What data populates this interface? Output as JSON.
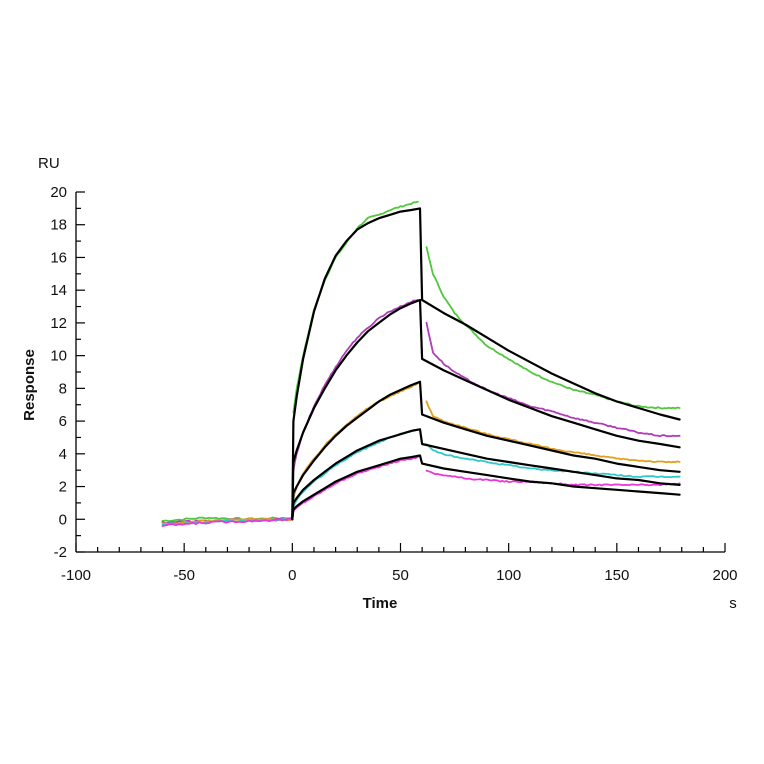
{
  "chart_data": {
    "type": "line",
    "y_unit": "RU",
    "x_unit": "s",
    "xlabel": "Time",
    "ylabel": "Response",
    "xlim": [
      -100,
      200
    ],
    "ylim": [
      -2,
      20
    ],
    "x_ticks": [
      -100,
      -50,
      0,
      50,
      100,
      150,
      200
    ],
    "y_ticks": [
      -2,
      0,
      2,
      4,
      6,
      8,
      10,
      12,
      14,
      16,
      18,
      20
    ],
    "legend": "none",
    "grid": false,
    "injection_start": 0,
    "injection_end": 60,
    "series": [
      {
        "color": "#4fc83c",
        "baseline": [
          [
            -60,
            -0.1
          ],
          [
            -40,
            0.1
          ],
          [
            -20,
            0.0
          ],
          [
            0,
            0.1
          ]
        ],
        "association": [
          [
            0.5,
            6.5
          ],
          [
            2,
            8.0
          ],
          [
            5,
            10.0
          ],
          [
            10,
            12.8
          ],
          [
            15,
            14.6
          ],
          [
            20,
            16.0
          ],
          [
            25,
            16.9
          ],
          [
            30,
            17.8
          ],
          [
            35,
            18.4
          ],
          [
            40,
            18.6
          ],
          [
            45,
            18.9
          ],
          [
            50,
            19.1
          ],
          [
            55,
            19.3
          ],
          [
            58,
            19.4
          ]
        ],
        "dissociation": [
          [
            62,
            16.6
          ],
          [
            65,
            15.0
          ],
          [
            70,
            13.6
          ],
          [
            75,
            12.6
          ],
          [
            80,
            11.9
          ],
          [
            90,
            10.6
          ],
          [
            100,
            9.8
          ],
          [
            110,
            9.0
          ],
          [
            120,
            8.4
          ],
          [
            130,
            7.9
          ],
          [
            140,
            7.6
          ],
          [
            150,
            7.2
          ],
          [
            160,
            6.9
          ],
          [
            170,
            6.8
          ],
          [
            179,
            6.8
          ]
        ]
      },
      {
        "color": "#b03cb8",
        "baseline": [
          [
            -60,
            -0.2
          ],
          [
            -40,
            -0.1
          ],
          [
            -20,
            0.0
          ],
          [
            0,
            0.0
          ]
        ],
        "association": [
          [
            0.5,
            3.0
          ],
          [
            2,
            4.0
          ],
          [
            5,
            5.3
          ],
          [
            10,
            6.9
          ],
          [
            15,
            8.2
          ],
          [
            20,
            9.3
          ],
          [
            25,
            10.3
          ],
          [
            30,
            11.1
          ],
          [
            35,
            11.7
          ],
          [
            40,
            12.3
          ],
          [
            45,
            12.7
          ],
          [
            50,
            13.0
          ],
          [
            55,
            13.3
          ],
          [
            58,
            13.4
          ]
        ],
        "dissociation": [
          [
            62,
            12.0
          ],
          [
            65,
            10.2
          ],
          [
            70,
            9.5
          ],
          [
            75,
            9.0
          ],
          [
            80,
            8.6
          ],
          [
            90,
            7.9
          ],
          [
            100,
            7.4
          ],
          [
            110,
            6.9
          ],
          [
            120,
            6.6
          ],
          [
            130,
            6.2
          ],
          [
            140,
            5.9
          ],
          [
            150,
            5.6
          ],
          [
            160,
            5.3
          ],
          [
            170,
            5.1
          ],
          [
            179,
            5.1
          ]
        ]
      },
      {
        "color": "#e0a020",
        "baseline": [
          [
            -60,
            -0.3
          ],
          [
            -40,
            -0.1
          ],
          [
            -20,
            0.0
          ],
          [
            0,
            0.0
          ]
        ],
        "association": [
          [
            0.5,
            1.3
          ],
          [
            2,
            2.0
          ],
          [
            5,
            2.8
          ],
          [
            10,
            3.7
          ],
          [
            15,
            4.5
          ],
          [
            20,
            5.2
          ],
          [
            25,
            5.8
          ],
          [
            30,
            6.3
          ],
          [
            35,
            6.8
          ],
          [
            40,
            7.2
          ],
          [
            45,
            7.5
          ],
          [
            50,
            7.8
          ],
          [
            55,
            8.1
          ],
          [
            58,
            8.3
          ]
        ],
        "dissociation": [
          [
            62,
            7.2
          ],
          [
            65,
            6.3
          ],
          [
            70,
            6.0
          ],
          [
            75,
            5.8
          ],
          [
            80,
            5.6
          ],
          [
            90,
            5.2
          ],
          [
            100,
            4.9
          ],
          [
            110,
            4.6
          ],
          [
            120,
            4.3
          ],
          [
            130,
            4.1
          ],
          [
            140,
            3.9
          ],
          [
            150,
            3.7
          ],
          [
            160,
            3.6
          ],
          [
            170,
            3.5
          ],
          [
            179,
            3.5
          ]
        ]
      },
      {
        "color": "#30c8c8",
        "baseline": [
          [
            -60,
            -0.3
          ],
          [
            -40,
            -0.2
          ],
          [
            -20,
            -0.1
          ],
          [
            0,
            0.0
          ]
        ],
        "association": [
          [
            0.5,
            0.8
          ],
          [
            2,
            1.2
          ],
          [
            5,
            1.7
          ],
          [
            10,
            2.3
          ],
          [
            15,
            2.8
          ],
          [
            20,
            3.3
          ],
          [
            25,
            3.7
          ],
          [
            30,
            4.1
          ],
          [
            35,
            4.4
          ],
          [
            40,
            4.7
          ],
          [
            45,
            5.0
          ],
          [
            50,
            5.2
          ],
          [
            55,
            5.4
          ],
          [
            58,
            5.5
          ]
        ],
        "dissociation": [
          [
            62,
            4.6
          ],
          [
            65,
            4.2
          ],
          [
            70,
            4.0
          ],
          [
            75,
            3.8
          ],
          [
            80,
            3.7
          ],
          [
            90,
            3.5
          ],
          [
            100,
            3.3
          ],
          [
            110,
            3.1
          ],
          [
            120,
            3.0
          ],
          [
            130,
            2.9
          ],
          [
            140,
            2.8
          ],
          [
            150,
            2.7
          ],
          [
            160,
            2.6
          ],
          [
            170,
            2.6
          ],
          [
            179,
            2.6
          ]
        ]
      },
      {
        "color": "#e838d8",
        "baseline": [
          [
            -60,
            -0.4
          ],
          [
            -40,
            -0.2
          ],
          [
            -20,
            -0.1
          ],
          [
            0,
            0.0
          ]
        ],
        "association": [
          [
            0.5,
            0.5
          ],
          [
            2,
            0.7
          ],
          [
            5,
            1.0
          ],
          [
            10,
            1.4
          ],
          [
            15,
            1.8
          ],
          [
            20,
            2.2
          ],
          [
            25,
            2.5
          ],
          [
            30,
            2.8
          ],
          [
            35,
            3.0
          ],
          [
            40,
            3.2
          ],
          [
            45,
            3.4
          ],
          [
            50,
            3.6
          ],
          [
            55,
            3.7
          ],
          [
            58,
            3.8
          ]
        ],
        "dissociation": [
          [
            62,
            3.0
          ],
          [
            65,
            2.8
          ],
          [
            70,
            2.7
          ],
          [
            75,
            2.6
          ],
          [
            80,
            2.5
          ],
          [
            90,
            2.4
          ],
          [
            100,
            2.3
          ],
          [
            110,
            2.3
          ],
          [
            120,
            2.2
          ],
          [
            130,
            2.1
          ],
          [
            140,
            2.1
          ],
          [
            150,
            2.1
          ],
          [
            160,
            2.1
          ],
          [
            170,
            2.1
          ],
          [
            179,
            2.2
          ]
        ]
      }
    ],
    "fits": [
      {
        "color": "#000000",
        "points": [
          [
            0,
            0
          ],
          [
            0.5,
            6.0
          ],
          [
            2,
            7.5
          ],
          [
            5,
            9.8
          ],
          [
            10,
            12.7
          ],
          [
            15,
            14.7
          ],
          [
            20,
            16.1
          ],
          [
            25,
            17.0
          ],
          [
            30,
            17.7
          ],
          [
            35,
            18.1
          ],
          [
            40,
            18.4
          ],
          [
            45,
            18.6
          ],
          [
            50,
            18.8
          ],
          [
            55,
            18.9
          ],
          [
            59,
            19.0
          ],
          [
            60,
            13.4
          ],
          [
            70,
            12.6
          ],
          [
            80,
            11.9
          ],
          [
            90,
            11.1
          ],
          [
            100,
            10.3
          ],
          [
            110,
            9.6
          ],
          [
            120,
            8.9
          ],
          [
            130,
            8.3
          ],
          [
            140,
            7.7
          ],
          [
            150,
            7.2
          ],
          [
            160,
            6.8
          ],
          [
            170,
            6.4
          ],
          [
            179,
            6.1
          ]
        ]
      },
      {
        "color": "#000000",
        "points": [
          [
            0,
            0
          ],
          [
            0.5,
            3.5
          ],
          [
            2,
            4.2
          ],
          [
            5,
            5.3
          ],
          [
            10,
            6.8
          ],
          [
            15,
            8.0
          ],
          [
            20,
            9.1
          ],
          [
            25,
            10.0
          ],
          [
            30,
            10.8
          ],
          [
            35,
            11.5
          ],
          [
            40,
            12.0
          ],
          [
            45,
            12.5
          ],
          [
            50,
            12.9
          ],
          [
            55,
            13.2
          ],
          [
            59,
            13.4
          ],
          [
            60,
            9.8
          ],
          [
            70,
            9.1
          ],
          [
            80,
            8.5
          ],
          [
            90,
            7.9
          ],
          [
            100,
            7.3
          ],
          [
            110,
            6.8
          ],
          [
            120,
            6.3
          ],
          [
            130,
            5.9
          ],
          [
            140,
            5.5
          ],
          [
            150,
            5.1
          ],
          [
            160,
            4.8
          ],
          [
            170,
            4.6
          ],
          [
            179,
            4.4
          ]
        ]
      },
      {
        "color": "#000000",
        "points": [
          [
            0,
            0
          ],
          [
            0.5,
            1.6
          ],
          [
            2,
            2.0
          ],
          [
            5,
            2.7
          ],
          [
            10,
            3.6
          ],
          [
            15,
            4.4
          ],
          [
            20,
            5.1
          ],
          [
            25,
            5.7
          ],
          [
            30,
            6.2
          ],
          [
            35,
            6.7
          ],
          [
            40,
            7.2
          ],
          [
            45,
            7.6
          ],
          [
            50,
            7.9
          ],
          [
            55,
            8.2
          ],
          [
            59,
            8.4
          ],
          [
            60,
            6.4
          ],
          [
            70,
            5.9
          ],
          [
            80,
            5.5
          ],
          [
            90,
            5.1
          ],
          [
            100,
            4.8
          ],
          [
            110,
            4.5
          ],
          [
            120,
            4.2
          ],
          [
            130,
            3.9
          ],
          [
            140,
            3.7
          ],
          [
            150,
            3.4
          ],
          [
            160,
            3.2
          ],
          [
            170,
            3.0
          ],
          [
            179,
            2.9
          ]
        ]
      },
      {
        "color": "#000000",
        "points": [
          [
            0,
            0
          ],
          [
            0.5,
            1.0
          ],
          [
            2,
            1.3
          ],
          [
            5,
            1.8
          ],
          [
            10,
            2.4
          ],
          [
            15,
            2.9
          ],
          [
            20,
            3.4
          ],
          [
            25,
            3.8
          ],
          [
            30,
            4.2
          ],
          [
            35,
            4.5
          ],
          [
            40,
            4.8
          ],
          [
            45,
            5.0
          ],
          [
            50,
            5.2
          ],
          [
            55,
            5.4
          ],
          [
            59,
            5.5
          ],
          [
            60,
            4.6
          ],
          [
            70,
            4.3
          ],
          [
            80,
            4.0
          ],
          [
            90,
            3.7
          ],
          [
            100,
            3.5
          ],
          [
            110,
            3.3
          ],
          [
            120,
            3.1
          ],
          [
            130,
            2.9
          ],
          [
            140,
            2.7
          ],
          [
            150,
            2.5
          ],
          [
            160,
            2.4
          ],
          [
            170,
            2.2
          ],
          [
            179,
            2.1
          ]
        ]
      },
      {
        "color": "#000000",
        "points": [
          [
            0,
            0
          ],
          [
            0.5,
            0.6
          ],
          [
            2,
            0.8
          ],
          [
            5,
            1.1
          ],
          [
            10,
            1.5
          ],
          [
            15,
            1.9
          ],
          [
            20,
            2.3
          ],
          [
            25,
            2.6
          ],
          [
            30,
            2.9
          ],
          [
            35,
            3.1
          ],
          [
            40,
            3.3
          ],
          [
            45,
            3.5
          ],
          [
            50,
            3.7
          ],
          [
            55,
            3.8
          ],
          [
            59,
            3.9
          ],
          [
            60,
            3.4
          ],
          [
            70,
            3.1
          ],
          [
            80,
            2.9
          ],
          [
            90,
            2.7
          ],
          [
            100,
            2.5
          ],
          [
            110,
            2.3
          ],
          [
            120,
            2.2
          ],
          [
            130,
            2.0
          ],
          [
            140,
            1.9
          ],
          [
            150,
            1.8
          ],
          [
            160,
            1.7
          ],
          [
            170,
            1.6
          ],
          [
            179,
            1.5
          ]
        ]
      }
    ]
  }
}
